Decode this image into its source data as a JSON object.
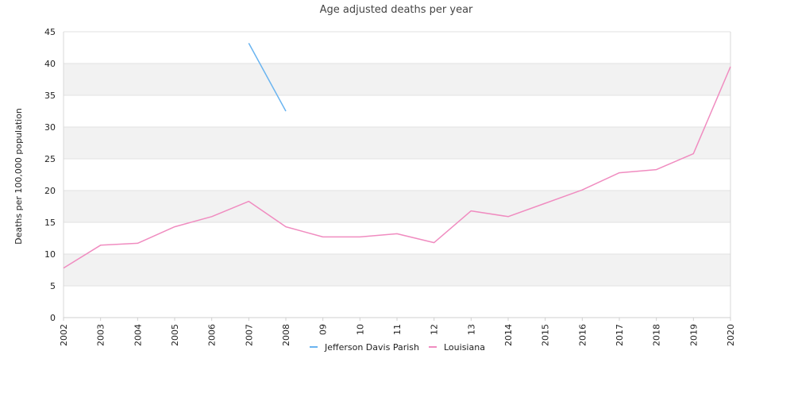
{
  "chart_data": {
    "type": "line",
    "title": "Age adjusted deaths per year",
    "xlabel": "",
    "ylabel": "Deaths per 100,000 population",
    "x": [
      "2002",
      "2003",
      "2004",
      "2005",
      "2006",
      "2007",
      "2008",
      "09",
      "10",
      "11",
      "12",
      "13",
      "2014",
      "2015",
      "2016",
      "2017",
      "2018",
      "2019",
      "2020"
    ],
    "ylim": [
      0,
      45
    ],
    "yticks": [
      0,
      5,
      10,
      15,
      20,
      25,
      30,
      35,
      40,
      45
    ],
    "grid": "alternating horizontal bands",
    "legend": "bottom-center",
    "series": [
      {
        "name": "Jefferson Davis Parish",
        "color": "#6ab4f0",
        "values": [
          null,
          null,
          null,
          null,
          null,
          43.2,
          32.5,
          null,
          null,
          null,
          null,
          null,
          null,
          null,
          null,
          null,
          null,
          null,
          null
        ]
      },
      {
        "name": "Louisiana",
        "color": "#f08cc0",
        "values": [
          7.8,
          11.4,
          11.7,
          14.3,
          15.9,
          18.3,
          14.3,
          12.7,
          12.7,
          13.2,
          11.8,
          16.8,
          15.9,
          18.0,
          20.1,
          22.8,
          23.3,
          25.8,
          39.5
        ]
      }
    ]
  }
}
